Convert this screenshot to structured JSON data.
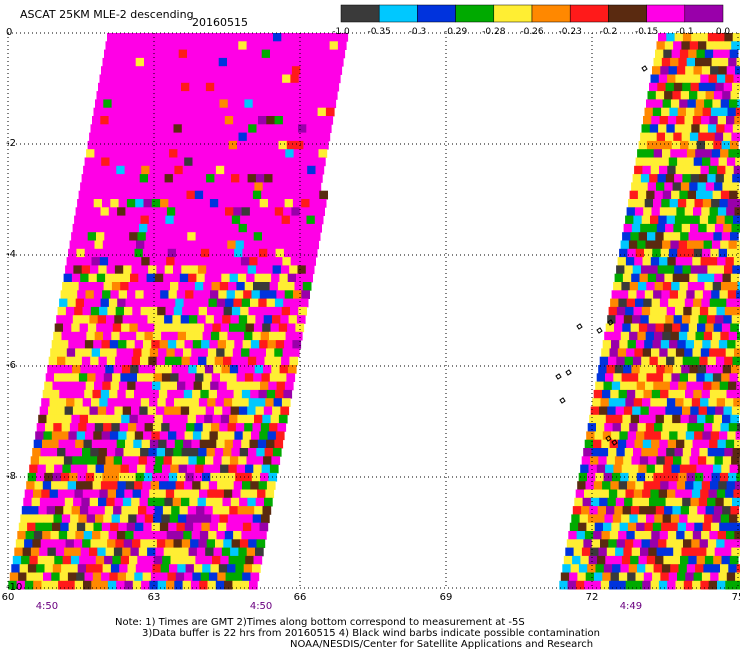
{
  "header": {
    "title": "ASCAT 25KM MLE-2 descending",
    "date": "20160515"
  },
  "colorbar": {
    "colors": [
      "#3a3a3a",
      "#00c8ff",
      "#0033dd",
      "#00aa00",
      "#ffee33",
      "#ff8800",
      "#ff1a1a",
      "#5a2a10",
      "#ff00e6",
      "#9900aa"
    ],
    "labels": [
      "-1.0",
      "-0.35",
      "-0.3",
      "-0.29",
      "-0.28",
      "-0.26",
      "-0.23",
      "-0.2",
      "-0.15",
      "-0.1",
      "0.0"
    ]
  },
  "axes": {
    "y_labels": [
      "0",
      "-2",
      "-4",
      "-6",
      "-8",
      "-10"
    ],
    "x_labels": [
      "60",
      "63",
      "66",
      "69",
      "72",
      "75"
    ],
    "time_labels": [
      {
        "lon": 60.8,
        "text": "4:50"
      },
      {
        "lon": 62.1,
        "text": ""
      },
      {
        "lon": 65.2,
        "text": "4:50"
      },
      {
        "lon": 72.8,
        "text": "4:49"
      }
    ]
  },
  "notes": {
    "line1": "Note: 1) Times are GMT 2)Times along bottom correspond to measurement at -5S",
    "line2": "3)Data buffer is 22 hrs from 20160515 4) Black wind barbs indicate possible contamination",
    "line3": "NOAA/NESDIS/Center for Satellite Applications and Research"
  }
}
